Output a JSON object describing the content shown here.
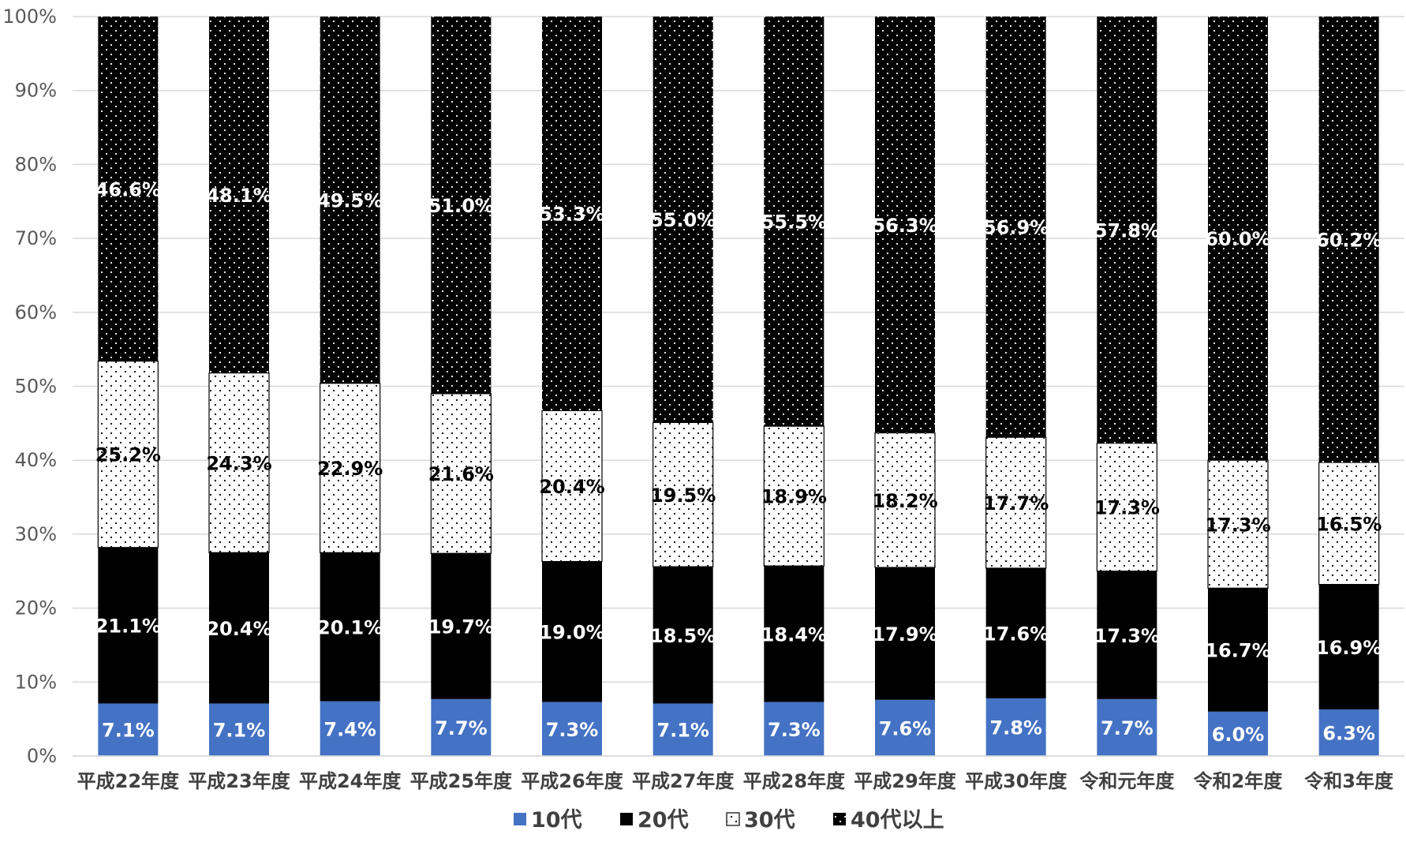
{
  "chart_data": {
    "type": "bar",
    "stacked": true,
    "percent": true,
    "categories": [
      "平成22年度",
      "平成23年度",
      "平成24年度",
      "平成25年度",
      "平成26年度",
      "平成27年度",
      "平成28年度",
      "平成29年度",
      "平成30年度",
      "令和元年度",
      "令和2年度",
      "令和3年度"
    ],
    "series": [
      {
        "name": "10代",
        "values": [
          7.1,
          7.1,
          7.4,
          7.7,
          7.3,
          7.1,
          7.3,
          7.6,
          7.8,
          7.7,
          6.0,
          6.3
        ],
        "labels": [
          "7.1%",
          "7.1%",
          "7.4%",
          "7.7%",
          "7.3%",
          "7.1%",
          "7.3%",
          "7.6%",
          "7.8%",
          "7.7%",
          "6.0%",
          "6.3%"
        ],
        "color": "#4472C4",
        "label_color": "#FFFFFF"
      },
      {
        "name": "20代",
        "values": [
          21.1,
          20.4,
          20.1,
          19.7,
          19.0,
          18.5,
          18.4,
          17.9,
          17.6,
          17.3,
          16.7,
          16.9
        ],
        "labels": [
          "21.1%",
          "20.4%",
          "20.1%",
          "19.7%",
          "19.0%",
          "18.5%",
          "18.4%",
          "17.9%",
          "17.6%",
          "17.3%",
          "16.7%",
          "16.9%"
        ],
        "color": "#000000",
        "label_color": "#FFFFFF"
      },
      {
        "name": "30代",
        "values": [
          25.2,
          24.3,
          22.9,
          21.6,
          20.4,
          19.5,
          18.9,
          18.2,
          17.7,
          17.3,
          17.3,
          16.5
        ],
        "labels": [
          "25.2%",
          "24.3%",
          "22.9%",
          "21.6%",
          "20.4%",
          "19.5%",
          "18.9%",
          "18.2%",
          "17.7%",
          "17.3%",
          "17.3%",
          "16.5%"
        ],
        "color": "#FFFFFF",
        "pattern": "black-dots-on-white",
        "label_color": "#000000"
      },
      {
        "name": "40代以上",
        "values": [
          46.6,
          48.1,
          49.5,
          51.0,
          53.3,
          55.0,
          55.5,
          56.3,
          56.9,
          57.8,
          60.0,
          60.2
        ],
        "labels": [
          "46.6%",
          "48.1%",
          "49.5%",
          "51.0%",
          "53.3%",
          "55.0%",
          "55.5%",
          "56.3%",
          "56.9%",
          "57.8%",
          "60.0%",
          "60.2%"
        ],
        "color": "#000000",
        "pattern": "white-dots-on-black",
        "label_color": "#FFFFFF"
      }
    ],
    "yticks": [
      "0%",
      "10%",
      "20%",
      "30%",
      "40%",
      "50%",
      "60%",
      "70%",
      "80%",
      "90%",
      "100%"
    ],
    "ylim": [
      0,
      100
    ],
    "grid": true,
    "legend_position": "bottom-center"
  }
}
